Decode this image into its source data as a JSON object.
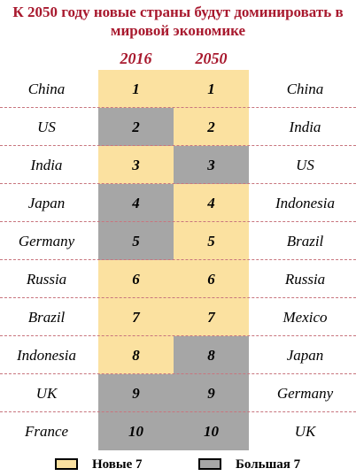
{
  "title": "К 2050 году новые страны будут доминировать в мировой экономике",
  "colors": {
    "new7": "#fbe1a0",
    "big7": "#a6a6a6",
    "accent": "#a8192e"
  },
  "legend": {
    "new7": "Новые 7",
    "big7": "Большая 7"
  },
  "chart_data": {
    "type": "table",
    "title": "К 2050 году новые страны будут доминировать в мировой экономике",
    "columns": [
      "2016",
      "2050"
    ],
    "rows": [
      {
        "country_2016": "China",
        "rank_2016": "1",
        "group_2016": "new7",
        "rank_2050": "1",
        "group_2050": "new7",
        "country_2050": "China"
      },
      {
        "country_2016": "US",
        "rank_2016": "2",
        "group_2016": "big7",
        "rank_2050": "2",
        "group_2050": "new7",
        "country_2050": "India"
      },
      {
        "country_2016": "India",
        "rank_2016": "3",
        "group_2016": "new7",
        "rank_2050": "3",
        "group_2050": "big7",
        "country_2050": "US"
      },
      {
        "country_2016": "Japan",
        "rank_2016": "4",
        "group_2016": "big7",
        "rank_2050": "4",
        "group_2050": "new7",
        "country_2050": "Indonesia"
      },
      {
        "country_2016": "Germany",
        "rank_2016": "5",
        "group_2016": "big7",
        "rank_2050": "5",
        "group_2050": "new7",
        "country_2050": "Brazil"
      },
      {
        "country_2016": "Russia",
        "rank_2016": "6",
        "group_2016": "new7",
        "rank_2050": "6",
        "group_2050": "new7",
        "country_2050": "Russia"
      },
      {
        "country_2016": "Brazil",
        "rank_2016": "7",
        "group_2016": "new7",
        "rank_2050": "7",
        "group_2050": "new7",
        "country_2050": "Mexico"
      },
      {
        "country_2016": "Indonesia",
        "rank_2016": "8",
        "group_2016": "new7",
        "rank_2050": "8",
        "group_2050": "big7",
        "country_2050": "Japan"
      },
      {
        "country_2016": "UK",
        "rank_2016": "9",
        "group_2016": "big7",
        "rank_2050": "9",
        "group_2050": "big7",
        "country_2050": "Germany"
      },
      {
        "country_2016": "France",
        "rank_2016": "10",
        "group_2016": "big7",
        "rank_2050": "10",
        "group_2050": "big7",
        "country_2050": "UK"
      }
    ]
  }
}
